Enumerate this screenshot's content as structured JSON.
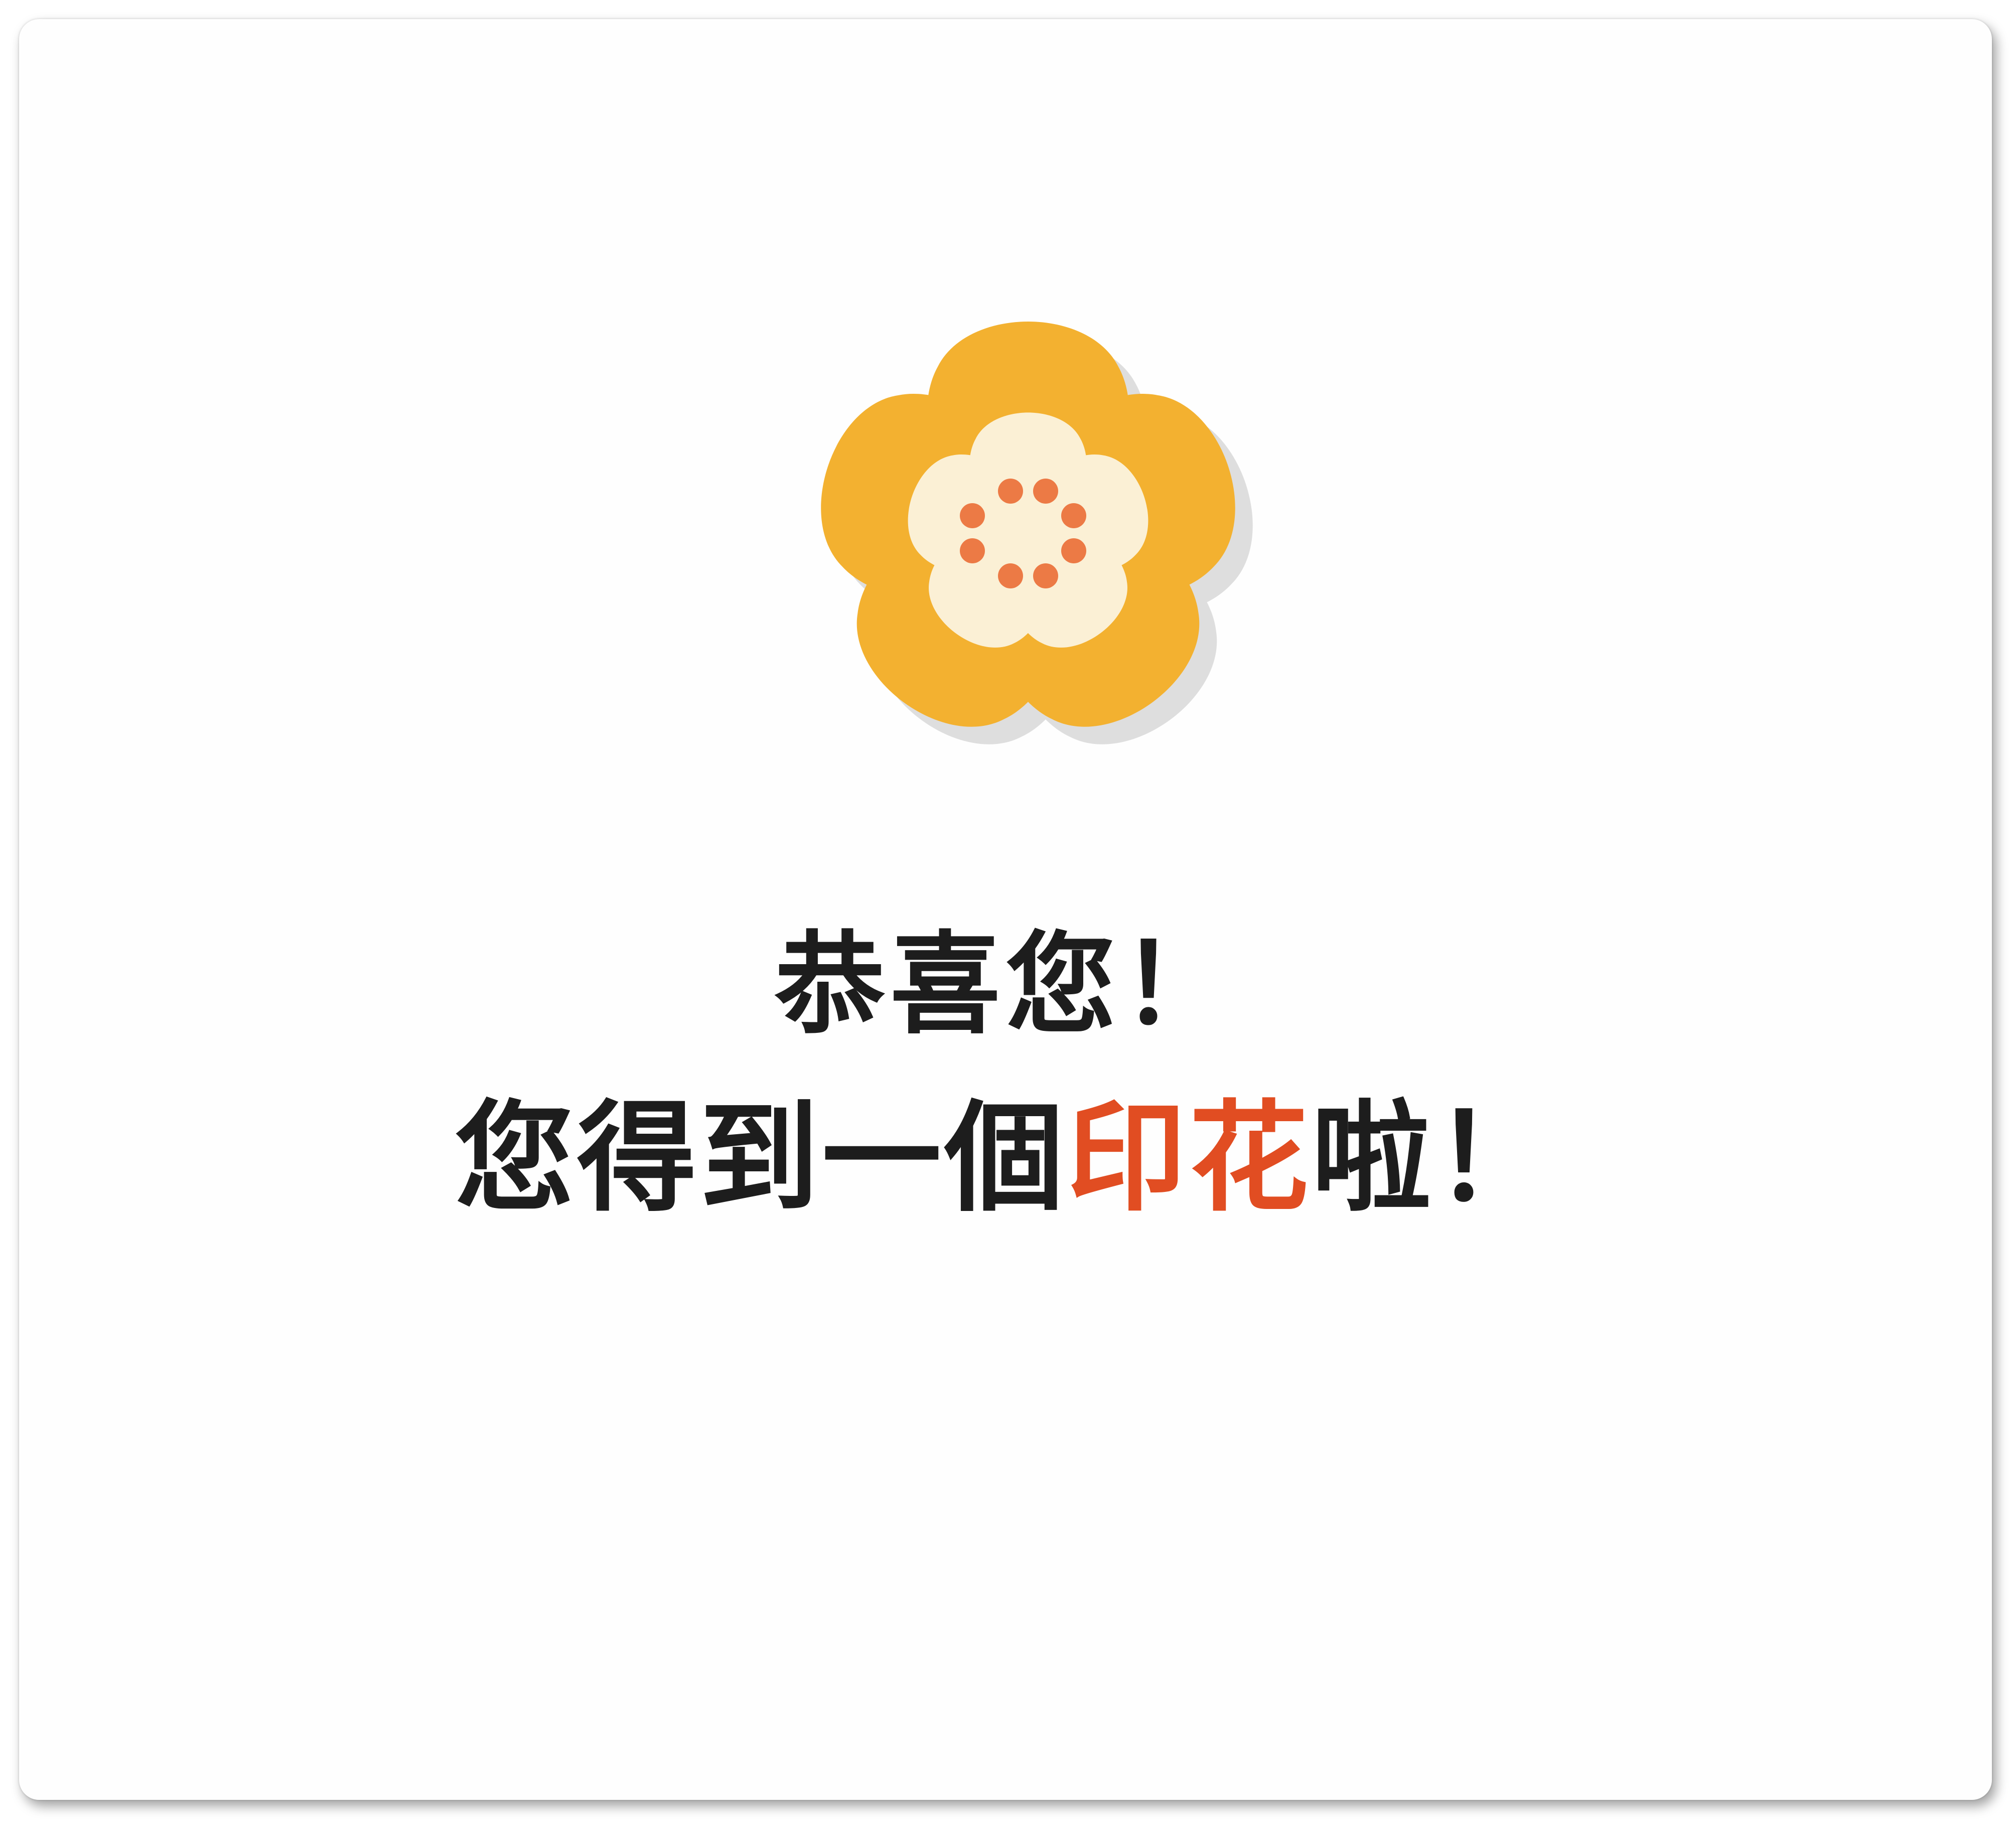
{
  "stamp_dialog": {
    "icon": "plum-blossom-flower-icon",
    "heading": "恭喜您！",
    "message_prefix": "您得到一個",
    "message_highlight": "印花",
    "message_suffix": "啦！"
  },
  "colors": {
    "petal": "#f3b130",
    "center": "#fbf0d5",
    "stamen": "#ec7a45",
    "shadow": "#dedede",
    "highlight_text": "#e14d22",
    "text": "#1d1d1d"
  }
}
